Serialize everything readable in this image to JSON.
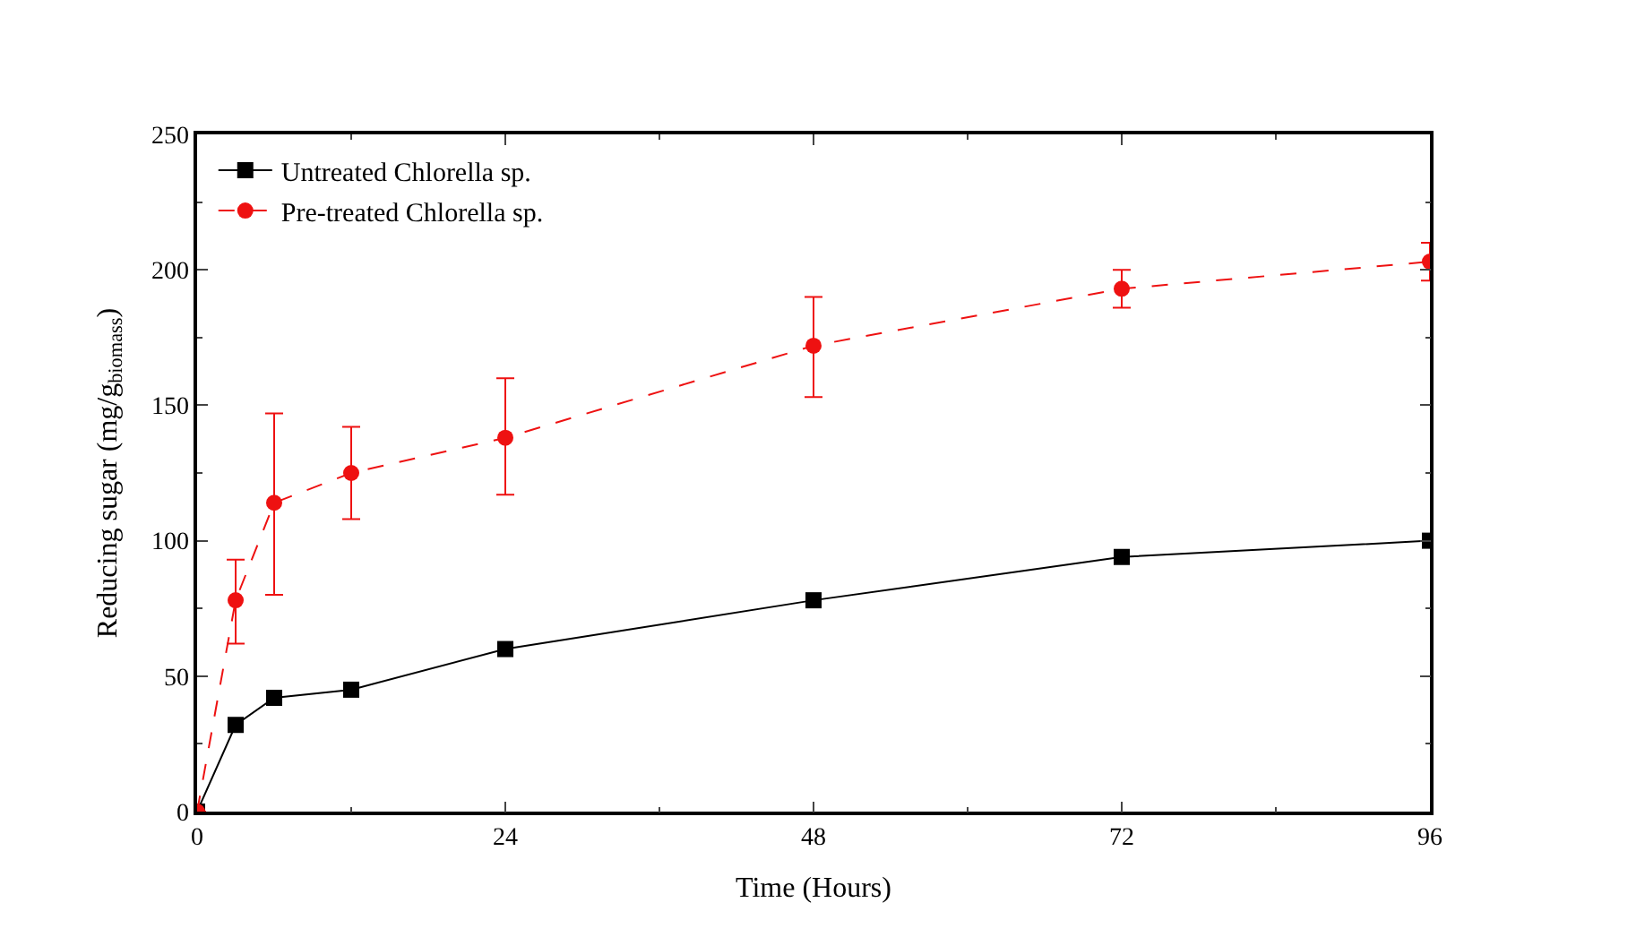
{
  "chart_data": {
    "type": "line",
    "xlabel": "Time (Hours)",
    "ylabel": "Reducing sugar (mg/g$_{biomass}$)",
    "x": [
      0,
      3,
      6,
      12,
      24,
      48,
      72,
      96
    ],
    "series": [
      {
        "name": "Untreated Chlorella sp.",
        "color": "#000000",
        "marker": "square",
        "line_style": "solid",
        "values": [
          0,
          32,
          42,
          45,
          60,
          78,
          94,
          100
        ]
      },
      {
        "name": "Pre-treated Chlorella sp.",
        "color": "#ee1111",
        "marker": "circle",
        "line_style": "dashed",
        "values": [
          0,
          78,
          114,
          125,
          138,
          172,
          193,
          203
        ],
        "errors": [
          null,
          [
            62,
            93
          ],
          [
            80,
            147
          ],
          [
            108,
            142
          ],
          [
            117,
            160
          ],
          [
            153,
            190
          ],
          [
            186,
            200
          ],
          [
            196,
            210
          ]
        ]
      }
    ],
    "xlim": [
      0,
      96
    ],
    "xticks": [
      0,
      24,
      48,
      72,
      96
    ],
    "ylim": [
      0,
      250
    ],
    "yticks": [
      0,
      50,
      100,
      150,
      200,
      250
    ],
    "legend": "top left"
  }
}
